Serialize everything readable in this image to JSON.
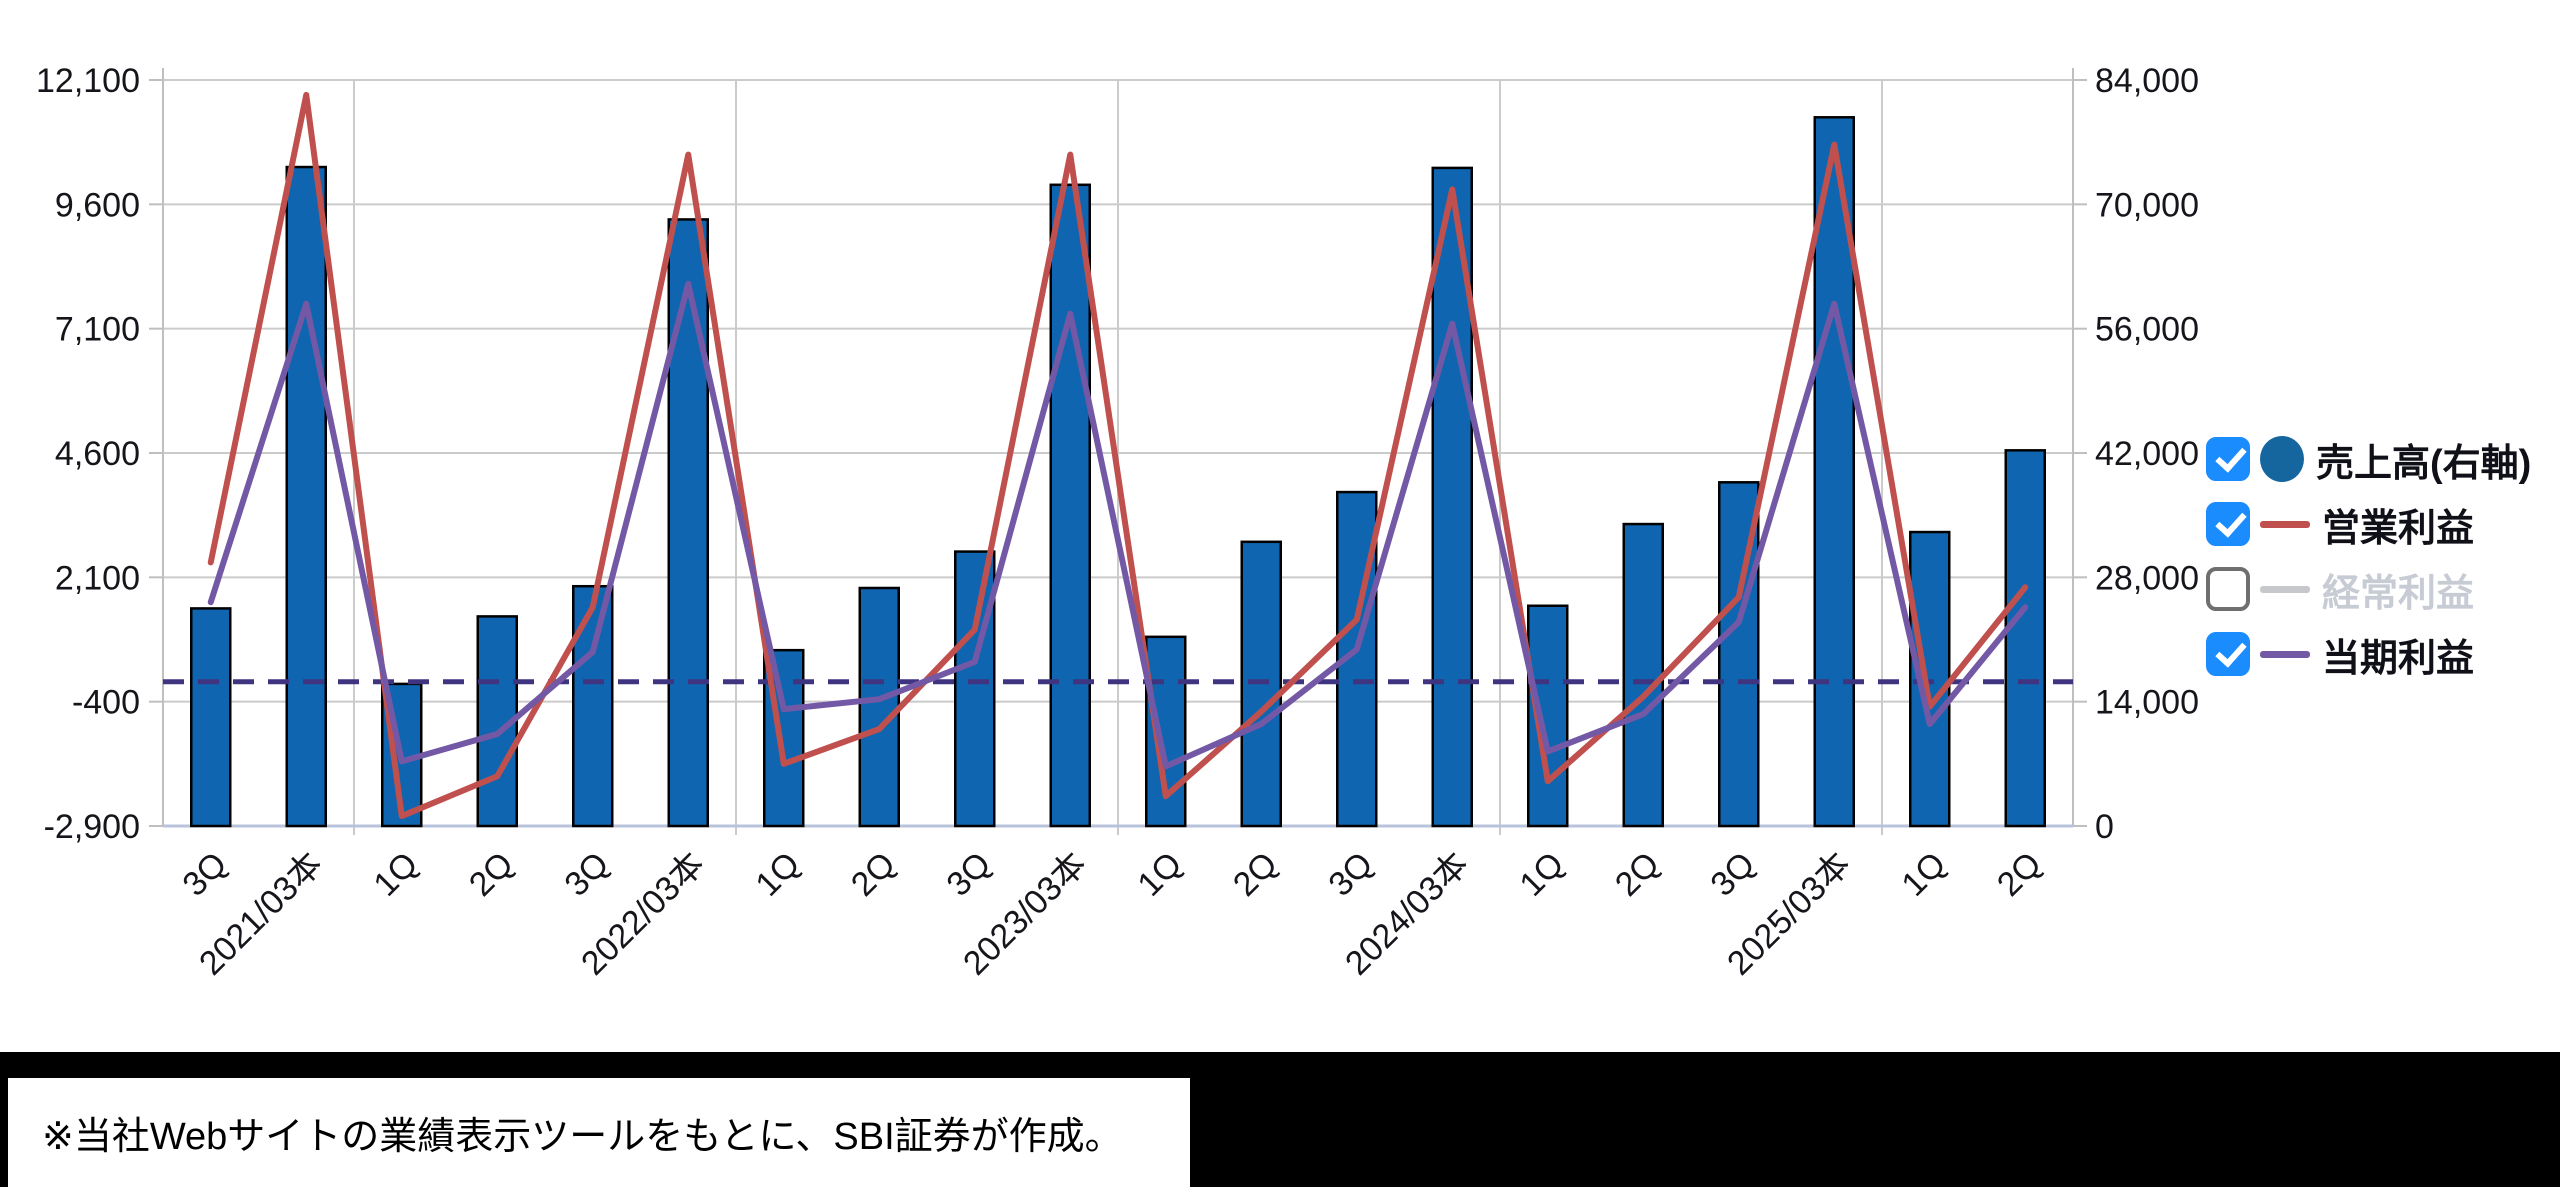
{
  "chart_data": {
    "type": "bar+line combo",
    "title": "",
    "categories": [
      "3Q",
      "2021/03本",
      "1Q",
      "2Q",
      "3Q",
      "2022/03本",
      "1Q",
      "2Q",
      "3Q",
      "2023/03本",
      "1Q",
      "2Q",
      "3Q",
      "2024/03本",
      "1Q",
      "2Q",
      "3Q",
      "2025/03本",
      "1Q",
      "2Q"
    ],
    "series": [
      {
        "name": "売上高(右軸)",
        "type": "bar",
        "axis": "right",
        "color": "#1065B0",
        "checked": true,
        "values": [
          24500,
          74200,
          16000,
          23600,
          27000,
          68300,
          19800,
          26800,
          30900,
          72200,
          21300,
          32000,
          37600,
          74100,
          24800,
          34000,
          38700,
          79800,
          33100,
          42300
        ]
      },
      {
        "name": "営業利益",
        "type": "line",
        "axis": "left",
        "color": "#C0504D",
        "checked": true,
        "values": [
          2400,
          11800,
          -2700,
          -1900,
          1500,
          10600,
          -1650,
          -950,
          1050,
          10600,
          -2300,
          -600,
          1250,
          9900,
          -2000,
          -300,
          1700,
          10800,
          -500,
          1900
        ]
      },
      {
        "name": "経常利益",
        "type": "line",
        "axis": "left",
        "color": "#C6C8CC",
        "checked": false,
        "values": []
      },
      {
        "name": "当期利益",
        "type": "line",
        "axis": "left",
        "color": "#7359A5",
        "checked": true,
        "values": [
          1600,
          7600,
          -1600,
          -1050,
          600,
          8000,
          -550,
          -350,
          400,
          7400,
          -1700,
          -850,
          650,
          7200,
          -1400,
          -650,
          1200,
          7600,
          -850,
          1500
        ]
      }
    ],
    "left_axis": {
      "min": -2900,
      "max": 12100,
      "ticks": [
        12100,
        9600,
        7100,
        4600,
        2100,
        -400,
        -2900
      ],
      "labels": [
        "12,100",
        "9,600",
        "7,100",
        "4,600",
        "2,100",
        "-400",
        "-2,900"
      ]
    },
    "right_axis": {
      "min": 0,
      "max": 84000,
      "ticks": [
        84000,
        70000,
        56000,
        42000,
        28000,
        14000,
        0
      ],
      "labels": [
        "84,000",
        "70,000",
        "56,000",
        "42,000",
        "28,000",
        "14,000",
        "0"
      ]
    },
    "zero_line": {
      "axis": "left",
      "value": 0,
      "style": "dashed",
      "color": "#3E3480"
    },
    "year_separators_after_index": [
      2,
      6,
      10,
      14,
      18
    ],
    "grid": true,
    "legend_position": "right"
  },
  "colors": {
    "bar_fill": "#1065B0",
    "bar_border": "#000000",
    "grid": "#CBCBCB",
    "axis": "#BFBFBF",
    "x_axis_line": "#B9C3DC",
    "tick_text": "#15151B",
    "checkbox_blue": "#1B8CFE",
    "legend_dot": "#15659F",
    "disabled_text": "#C7CBD4",
    "zero_dash": "#3E3480"
  },
  "note": {
    "text": "※当社Webサイトの業績表示ツールをもとに、SBI証券が作成。"
  }
}
